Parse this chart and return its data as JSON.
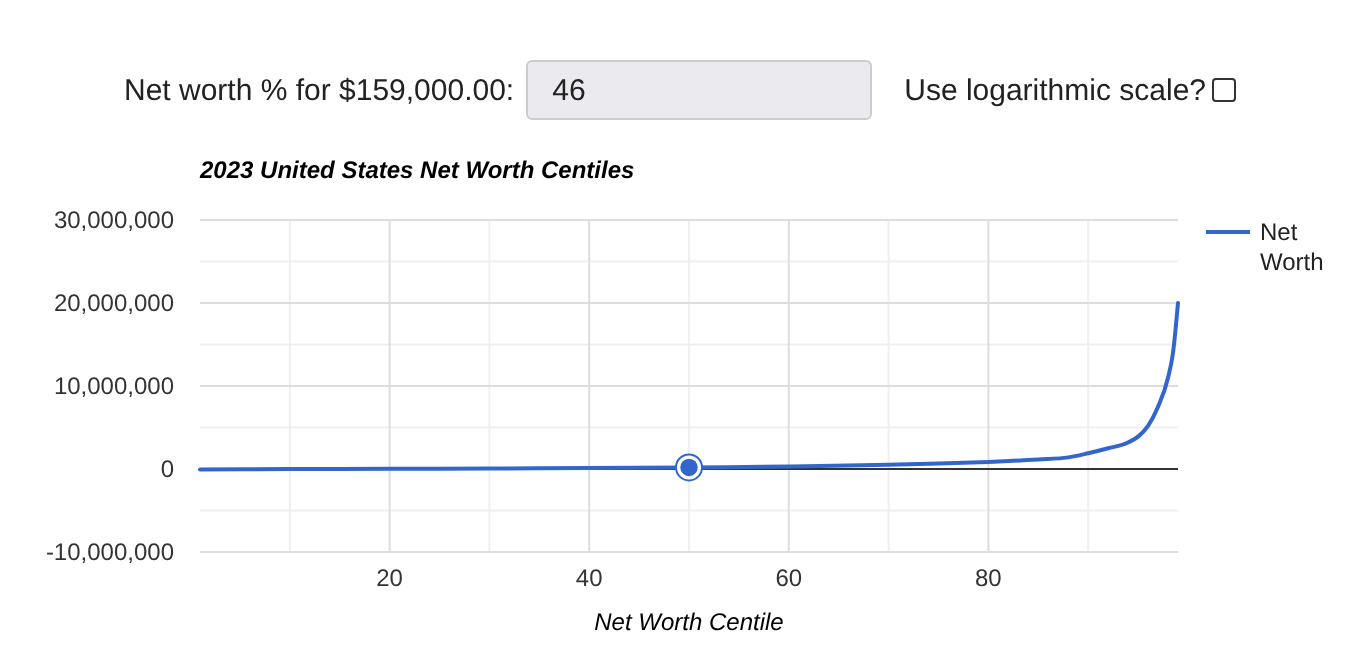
{
  "chart_data": {
    "type": "line",
    "title": "2023 United States Net Worth Centiles",
    "xlabel": "Net Worth Centile",
    "annotations": [
      "Net worth % for $159,000.00:",
      "46",
      "Use logarithmic scale?"
    ],
    "xlim": [
      1,
      99
    ],
    "xticks": [
      20,
      40,
      60,
      80
    ],
    "ylim": [
      -10000000,
      30000000
    ],
    "yticks": [
      {
        "value": -10000000,
        "label": "-10,000,000"
      },
      {
        "value": 0,
        "label": "0"
      },
      {
        "value": 10000000,
        "label": "10,000,000"
      },
      {
        "value": 20000000,
        "label": "20,000,000"
      },
      {
        "value": 30000000,
        "label": "30,000,000"
      }
    ],
    "grid": true,
    "legend": "right",
    "marker": "none",
    "series": [
      {
        "name": "Net Worth",
        "color": "#3366cc",
        "x": [
          1,
          10,
          20,
          30,
          40,
          50,
          60,
          70,
          75,
          80,
          85,
          88,
          90,
          92,
          94,
          95,
          96,
          97,
          98,
          98.5,
          99
        ],
        "values": [
          -50000,
          0,
          20000,
          60000,
          120000,
          190000,
          300000,
          500000,
          650000,
          850000,
          1150000,
          1400000,
          1900000,
          2500000,
          3200000,
          3900000,
          5200000,
          7500000,
          11000000,
          14000000,
          20000000
        ]
      },
      {
        "type": "scatter",
        "color": "#3366cc",
        "marker": "circle",
        "x": [
          50
        ],
        "values": [
          190000
        ]
      }
    ]
  }
}
